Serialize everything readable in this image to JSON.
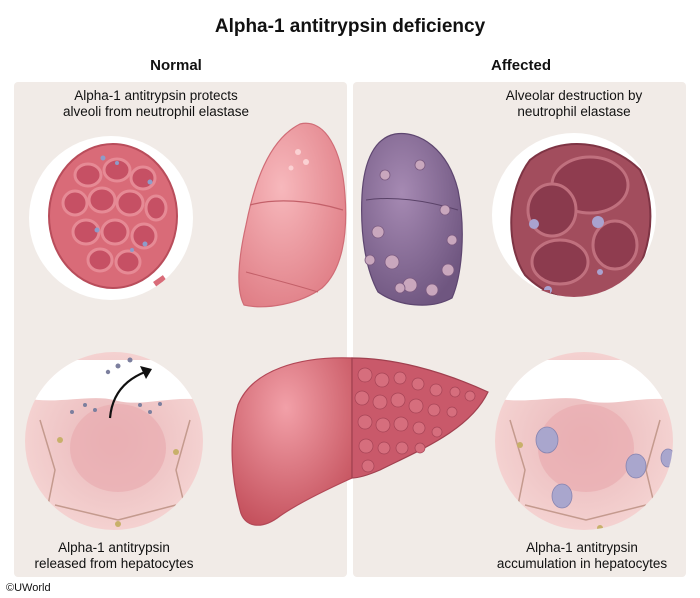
{
  "title": "Alpha-1 antitrypsin deficiency",
  "columns": {
    "normal": {
      "heading": "Normal",
      "top_caption": [
        "Alpha-1 antitrypsin protects",
        "alveoli from neutrophil elastase"
      ],
      "bottom_caption": [
        "Alpha-1 antitrypsin",
        "released from hepatocytes"
      ]
    },
    "affected": {
      "heading": "Affected",
      "top_caption": [
        "Alveolar destruction by",
        "neutrophil elastase"
      ],
      "bottom_caption": [
        "Alpha-1 antitrypsin",
        "accumulation in hepatocytes"
      ]
    }
  },
  "copyright": "©UWorld",
  "colors": {
    "panel_bg": "#f1ebe7",
    "healthy_lung": "#ee9aa0",
    "emphysema_lung": "#8b6f99",
    "liver": "#d9656f",
    "cirrhotic_liver": "#c95a68",
    "alpha1_globule": "#a7a6c8"
  }
}
